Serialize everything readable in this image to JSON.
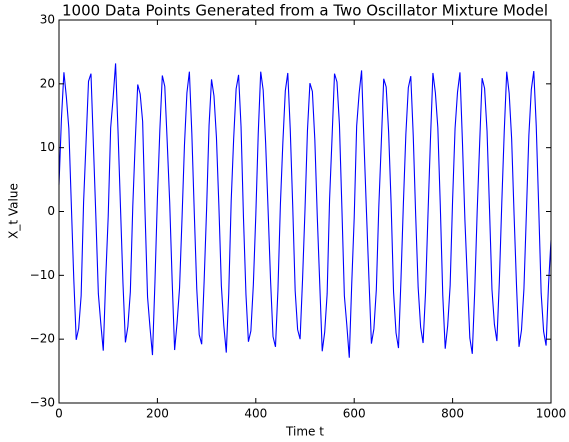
{
  "chart_data": {
    "type": "line",
    "title": "1000 Data Points Generated from a Two Oscillator Mixture Model",
    "x_label": "Time t",
    "y_label": "X_t Value",
    "color": "#0000ff",
    "x": [
      0,
      5,
      10,
      15,
      20,
      25,
      30,
      35,
      40,
      45,
      50,
      55,
      60,
      65,
      70,
      75,
      80,
      85,
      90,
      95,
      100,
      105,
      110,
      115,
      120,
      125,
      130,
      135,
      140,
      145,
      150,
      155,
      160,
      165,
      170,
      175,
      180,
      185,
      190,
      195,
      200,
      205,
      210,
      215,
      220,
      225,
      230,
      235,
      240,
      245,
      250,
      255,
      260,
      265,
      270,
      275,
      280,
      285,
      290,
      295,
      300,
      305,
      310,
      315,
      320,
      325,
      330,
      335,
      340,
      345,
      350,
      355,
      360,
      365,
      370,
      375,
      380,
      385,
      390,
      395,
      400,
      405,
      410,
      415,
      420,
      425,
      430,
      435,
      440,
      445,
      450,
      455,
      460,
      465,
      470,
      475,
      480,
      485,
      490,
      495,
      500,
      505,
      510,
      515,
      520,
      525,
      530,
      535,
      540,
      545,
      550,
      555,
      560,
      565,
      570,
      575,
      580,
      585,
      590,
      595,
      600,
      605,
      610,
      615,
      620,
      625,
      630,
      635,
      640,
      645,
      650,
      655,
      660,
      665,
      670,
      675,
      680,
      685,
      690,
      695,
      700,
      705,
      710,
      715,
      720,
      725,
      730,
      735,
      740,
      745,
      750,
      755,
      760,
      765,
      770,
      775,
      780,
      785,
      790,
      795,
      800,
      805,
      810,
      815,
      820,
      825,
      830,
      835,
      840,
      845,
      850,
      855,
      860,
      865,
      870,
      875,
      880,
      885,
      890,
      895,
      900,
      905,
      910,
      915,
      920,
      925,
      930,
      935,
      940,
      945,
      950,
      955,
      960,
      965,
      970,
      975,
      980,
      985,
      990,
      995,
      1000
    ],
    "values": [
      4.2,
      14.6,
      21.8,
      17.9,
      13.0,
      1.2,
      -10.5,
      -20.1,
      -18.3,
      -13.2,
      1.5,
      10.9,
      20.4,
      21.6,
      10.3,
      -1.0,
      -12.9,
      -17.6,
      -21.8,
      -10.4,
      -0.8,
      13.1,
      17.8,
      23.2,
      12.5,
      0.6,
      -11.2,
      -20.5,
      -18.0,
      -12.6,
      0.9,
      11.0,
      19.9,
      18.4,
      14.1,
      -0.5,
      -13.4,
      -18.2,
      -22.5,
      -11.1,
      2.1,
      12.8,
      21.3,
      19.6,
      10.8,
      1.4,
      -10.9,
      -21.7,
      -17.4,
      -12.0,
      -1.2,
      10.4,
      18.6,
      21.9,
      12.2,
      -0.3,
      -12.1,
      -19.3,
      -20.8,
      -10.9,
      0.4,
      13.5,
      20.7,
      18.1,
      11.6,
      0.8,
      -11.6,
      -17.9,
      -22.1,
      -12.8,
      1.7,
      11.4,
      19.2,
      21.4,
      13.3,
      -1.1,
      -13.0,
      -20.4,
      -18.7,
      -11.5,
      -0.6,
      12.3,
      21.9,
      19.0,
      10.7,
      0.2,
      -10.8,
      -19.6,
      -21.2,
      -12.3,
      1.1,
      10.8,
      18.9,
      21.7,
      12.9,
      1.0,
      -12.4,
      -18.5,
      -20.0,
      -10.7,
      0.3,
      12.7,
      20.1,
      18.8,
      11.2,
      -0.9,
      -11.4,
      -21.9,
      -18.9,
      -12.9,
      2.0,
      11.6,
      21.6,
      20.3,
      13.6,
      0.5,
      -13.2,
      -17.8,
      -22.9,
      -11.3,
      -1.0,
      13.4,
      18.5,
      22.1,
      10.6,
      -0.2,
      -10.6,
      -20.7,
      -18.4,
      -12.2,
      0.7,
      10.6,
      20.8,
      19.5,
      12.4,
      1.3,
      -12.6,
      -19.0,
      -21.4,
      -10.8,
      1.3,
      12.1,
      19.4,
      21.2,
      11.9,
      -0.7,
      -11.9,
      -18.1,
      -20.6,
      -12.7,
      -0.4,
      11.3,
      21.7,
      18.6,
      13.1,
      0.9,
      -13.1,
      -21.5,
      -17.9,
      -11.6,
      1.8,
      13.0,
      18.7,
      21.8,
      10.9,
      -1.3,
      -10.7,
      -19.8,
      -22.3,
      -12.4,
      0.1,
      10.7,
      20.9,
      19.3,
      12.6,
      0.4,
      -12.2,
      -17.7,
      -20.3,
      -11.0,
      1.4,
      12.6,
      21.9,
      18.5,
      11.4,
      -0.6,
      -11.8,
      -21.2,
      -18.6,
      -12.1,
      -0.2,
      11.9,
      19.1,
      22.0,
      13.4,
      0.7,
      -12.8,
      -18.8,
      -21.0,
      -11.4,
      -4.5
    ],
    "xlim": [
      0,
      1000
    ],
    "xticks": [
      0,
      200,
      400,
      600,
      800,
      1000
    ],
    "ylim": [
      -30,
      30
    ],
    "yticks": [
      {
        "value": -30,
        "label": "−30"
      },
      {
        "value": -20,
        "label": "−20"
      },
      {
        "value": -10,
        "label": "−10"
      },
      0,
      10,
      20,
      30
    ]
  }
}
